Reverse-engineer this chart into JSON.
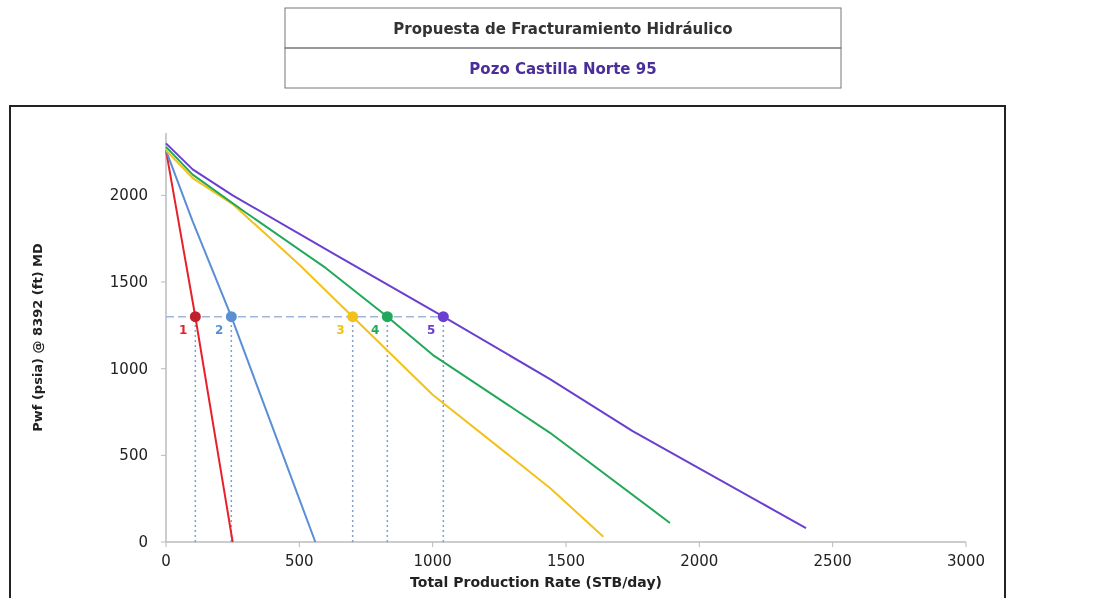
{
  "chart_data": {
    "type": "line",
    "title": "Propuesta de Fracturamiento Hidráulico",
    "subtitle": "Pozo Castilla Norte 95",
    "xlabel": "Total Production Rate (STB/day)",
    "ylabel": "Pwf (psia) @ 8392 (ft) MD",
    "xlim": [
      0,
      3000
    ],
    "ylim": [
      0,
      2360
    ],
    "xticks": [
      0,
      500,
      1000,
      1500,
      2000,
      2500,
      3000
    ],
    "yticks": [
      0,
      500,
      1000,
      1500,
      2000
    ],
    "grid": false,
    "marker": "none",
    "line_style": "solid",
    "series": [
      {
        "color": "#e8202a",
        "x": [
          0,
          110,
          250
        ],
        "values": [
          2260,
          1300,
          0
        ]
      },
      {
        "color": "#5b8fd4",
        "x": [
          0,
          100,
          245,
          400,
          560
        ],
        "values": [
          2260,
          1850,
          1300,
          660,
          0
        ]
      },
      {
        "color": "#f2c21b",
        "x": [
          0,
          100,
          250,
          500,
          700,
          1000,
          1440,
          1640
        ],
        "values": [
          2260,
          2100,
          1950,
          1600,
          1300,
          850,
          312,
          30
        ]
      },
      {
        "color": "#22a85a",
        "x": [
          0,
          100,
          300,
          600,
          830,
          1000,
          1440,
          1890
        ],
        "values": [
          2280,
          2120,
          1900,
          1580,
          1300,
          1080,
          630,
          110
        ]
      },
      {
        "color": "#6a3fd0",
        "x": [
          0,
          100,
          250,
          700,
          1040,
          1440,
          1750,
          2400
        ],
        "values": [
          2300,
          2150,
          2000,
          1600,
          1300,
          940,
          640,
          80
        ]
      },
      {
        "type": "scatter",
        "marker": "circle",
        "x": [
          110,
          245,
          700,
          830,
          1040
        ],
        "values": [
          1300,
          1300,
          1300,
          1300,
          1300
        ],
        "colors": [
          "#c0202a",
          "#5b8fd4",
          "#f2c21b",
          "#22a85a",
          "#6a3fd0"
        ]
      }
    ],
    "ref_lines": [
      {
        "axis": "y",
        "value": 1300,
        "color": "#9fb6d8",
        "line_style": "dashed"
      },
      {
        "axis": "x",
        "value": 110,
        "color": "#7f9fcf",
        "line_style": "dotted"
      },
      {
        "axis": "x",
        "value": 245,
        "color": "#7f9fcf",
        "line_style": "dotted"
      },
      {
        "axis": "x",
        "value": 700,
        "color": "#7f9fcf",
        "line_style": "dotted"
      },
      {
        "axis": "x",
        "value": 830,
        "color": "#7f9fcf",
        "line_style": "dotted"
      },
      {
        "axis": "x",
        "value": 1040,
        "color": "#7f9fcf",
        "line_style": "dotted"
      }
    ],
    "annotations": [
      {
        "text": "1",
        "x": 110,
        "y": 1300
      },
      {
        "text": "2",
        "x": 245,
        "y": 1300
      },
      {
        "text": "3",
        "x": 700,
        "y": 1300
      },
      {
        "text": "4",
        "x": 830,
        "y": 1300
      },
      {
        "text": "5",
        "x": 1040,
        "y": 1300
      }
    ]
  }
}
